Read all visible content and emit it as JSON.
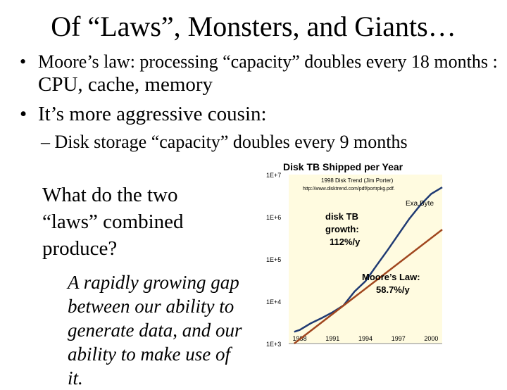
{
  "slide": {
    "title": "Of “Laws”, Monsters, and Giants…",
    "bullet1_dot": "•",
    "bullet1_part1": "Moore’s law: processing “capacity” doubles every 18 months : ",
    "bullet1_part2": "CPU, cache, memory",
    "bullet2_dot": "•",
    "bullet2_text": "It’s more aggressive cousin:",
    "sub_bullet": "– Disk storage “capacity” doubles every 9 months",
    "question": "What do the two “laws” combined produce?",
    "answer": "A rapidly growing gap between our ability to generate data, and our ability to make use of it."
  },
  "chart_data": {
    "type": "line",
    "title": "Disk TB Shipped per Year",
    "source_line1": "1998 Disk Trend (Jim Porter)",
    "source_line2": "http://www.disktrend.com/pdf/portrpkg.pdf.",
    "y_scale": "log",
    "ylim": [
      1000,
      10000000
    ],
    "y_ticks": [
      "1E+3",
      "1E+4",
      "1E+5",
      "1E+6",
      "1E+7"
    ],
    "x_ticks": [
      "1988",
      "1991",
      "1994",
      "1997",
      "2000"
    ],
    "xlim": [
      1987,
      2001
    ],
    "background": "#fffbe0",
    "series": [
      {
        "name": "disk TB growth: 112%/y",
        "color": "#1f3a73",
        "points": [
          [
            1987.5,
            1900
          ],
          [
            1988,
            2100
          ],
          [
            1989,
            3000
          ],
          [
            1990,
            4000
          ],
          [
            1991,
            5500
          ],
          [
            1992,
            8000
          ],
          [
            1993,
            17000
          ],
          [
            1994,
            30000
          ],
          [
            1995,
            70000
          ],
          [
            1996,
            160000
          ],
          [
            1997,
            380000
          ],
          [
            1998,
            900000
          ],
          [
            1999,
            1900000
          ],
          [
            2000,
            3500000
          ],
          [
            2001,
            5000000
          ]
        ]
      },
      {
        "name": "Moore’s Law: 58.7%/y",
        "color": "#a0461e",
        "points": [
          [
            1987.5,
            1000
          ],
          [
            2001,
            500000
          ]
        ]
      }
    ],
    "labels": {
      "exabyte": "Exa.Byte",
      "disk_label_1": "disk TB",
      "disk_label_2": "growth:",
      "disk_label_3": "112%/y",
      "moore_label_1": "Moore’s Law:",
      "moore_label_2": "58.7%/y"
    }
  }
}
